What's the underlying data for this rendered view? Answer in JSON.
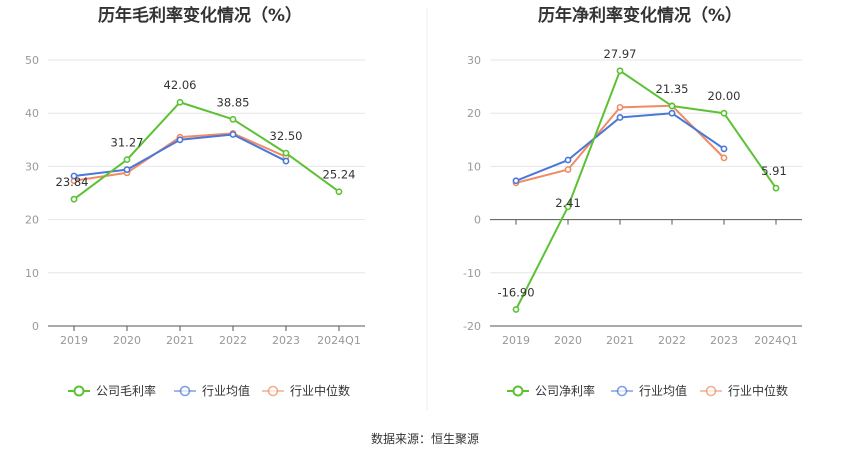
{
  "chart_data": [
    {
      "type": "line",
      "title": "历年毛利率变化情况（%）",
      "categories": [
        "2019",
        "2020",
        "2021",
        "2022",
        "2023",
        "2024Q1"
      ],
      "yticks": [
        0,
        10,
        20,
        30,
        40,
        50
      ],
      "ylim": [
        0,
        50
      ],
      "series": [
        {
          "name": "公司毛利率",
          "color": "#5cc234",
          "values": [
            23.84,
            31.27,
            42.06,
            38.85,
            32.5,
            25.24
          ],
          "labels": [
            "23.84",
            "31.27",
            "42.06",
            "38.85",
            "32.50",
            "25.24"
          ]
        },
        {
          "name": "行业均值",
          "color": "#4a78d6",
          "values": [
            28.2,
            29.4,
            35.0,
            36.0,
            31.0,
            null
          ]
        },
        {
          "name": "行业中位数",
          "color": "#f08b65",
          "values": [
            27.3,
            28.8,
            35.5,
            36.2,
            31.8,
            null
          ]
        }
      ]
    },
    {
      "type": "line",
      "title": "历年净利率变化情况（%）",
      "categories": [
        "2019",
        "2020",
        "2021",
        "2022",
        "2023",
        "2024Q1"
      ],
      "yticks": [
        -20,
        -10,
        0,
        10,
        20,
        30
      ],
      "ylim": [
        -20,
        30
      ],
      "series": [
        {
          "name": "公司净利率",
          "color": "#5cc234",
          "values": [
            -16.9,
            2.41,
            27.97,
            21.35,
            20.0,
            5.91
          ],
          "labels": [
            "-16.90",
            "2.41",
            "27.97",
            "21.35",
            "20.00",
            "5.91"
          ]
        },
        {
          "name": "行业均值",
          "color": "#4a78d6",
          "values": [
            7.3,
            11.2,
            19.2,
            20.0,
            13.3,
            null
          ]
        },
        {
          "name": "行业中位数",
          "color": "#f08b65",
          "values": [
            6.9,
            9.4,
            21.1,
            21.4,
            11.6,
            null
          ]
        }
      ]
    }
  ],
  "footer": {
    "source": "数据来源：恒生聚源"
  }
}
